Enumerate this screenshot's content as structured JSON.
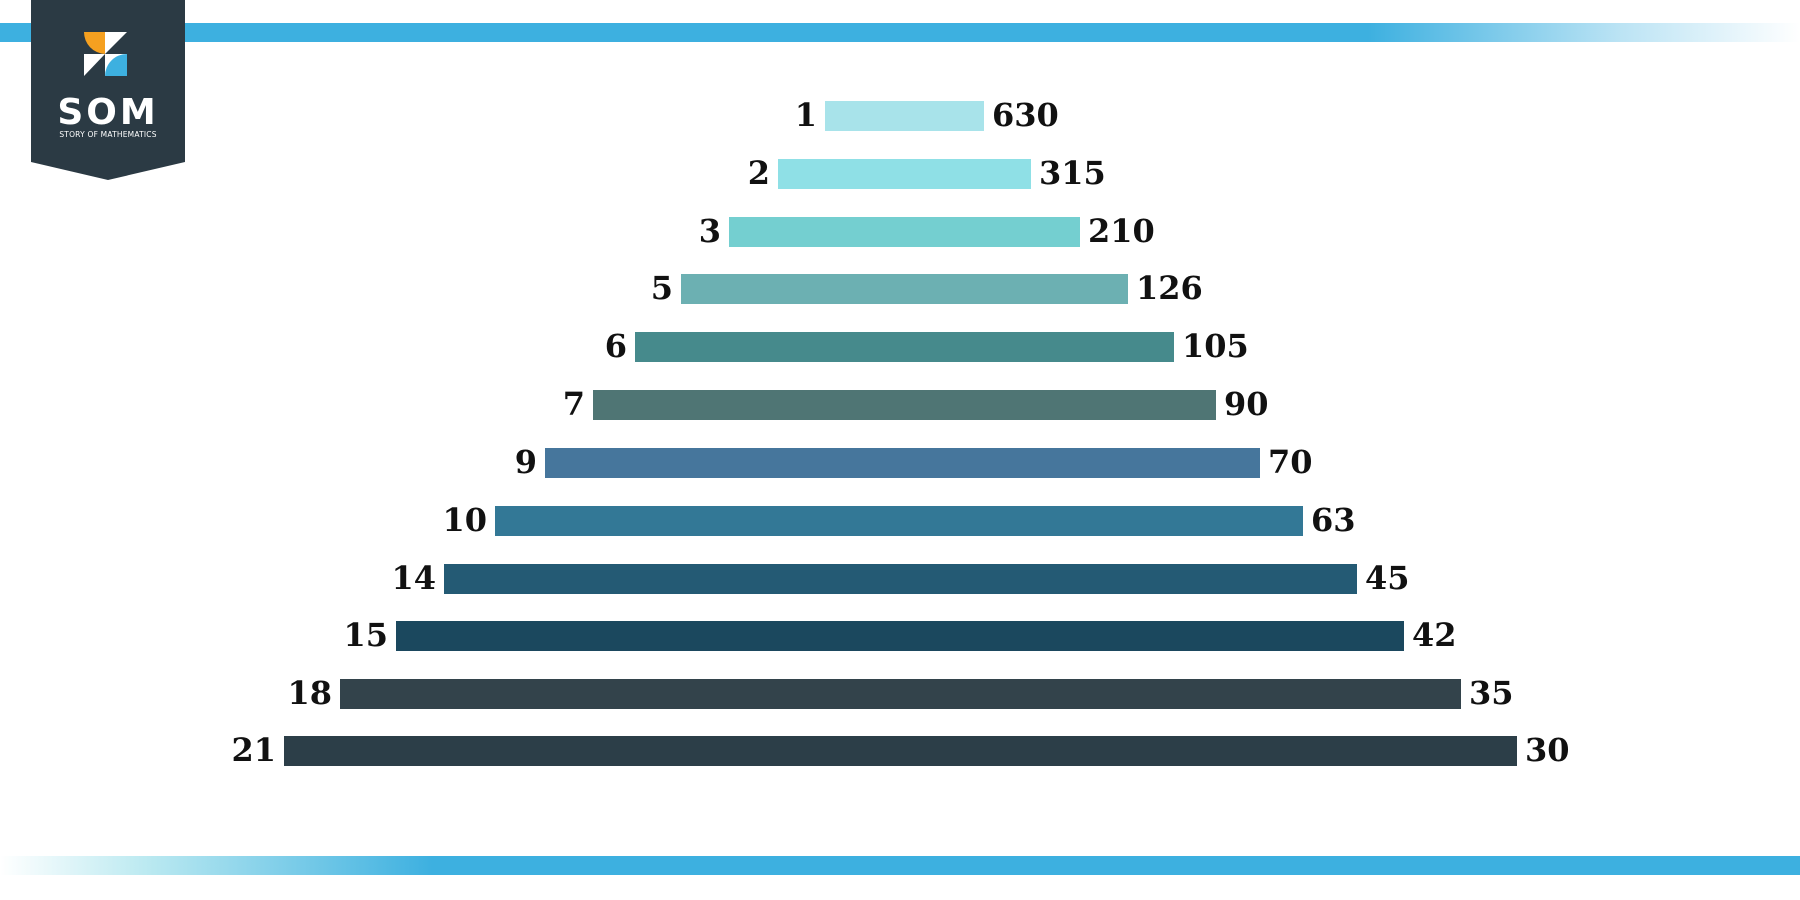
{
  "logo": {
    "name": "SOM",
    "subtitle": "STORY OF MATHEMATICS",
    "colors": {
      "background": "#2b3a44",
      "orange": "#f5a020",
      "blue": "#3db0e0",
      "white": "#ffffff"
    }
  },
  "accent_color": "#3db0e0",
  "factor_pairs": [
    {
      "left": "1",
      "right": "630",
      "color": "#a8e3ea"
    },
    {
      "left": "2",
      "right": "315",
      "color": "#8fe0e6"
    },
    {
      "left": "3",
      "right": "210",
      "color": "#74cfd0"
    },
    {
      "left": "5",
      "right": "126",
      "color": "#6cb0b2"
    },
    {
      "left": "6",
      "right": "105",
      "color": "#468a8c"
    },
    {
      "left": "7",
      "right": "90",
      "color": "#4f7574"
    },
    {
      "left": "9",
      "right": "70",
      "color": "#46769c"
    },
    {
      "left": "10",
      "right": "63",
      "color": "#337896"
    },
    {
      "left": "14",
      "right": "45",
      "color": "#245a74"
    },
    {
      "left": "15",
      "right": "42",
      "color": "#1b485e"
    },
    {
      "left": "18",
      "right": "35",
      "color": "#33434b"
    },
    {
      "left": "21",
      "right": "30",
      "color": "#2c3e48"
    }
  ]
}
